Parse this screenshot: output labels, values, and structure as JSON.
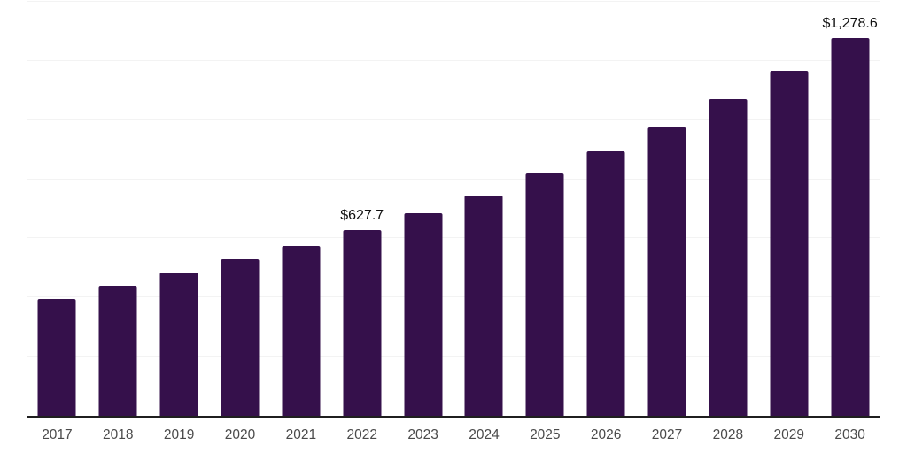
{
  "chart_data": {
    "type": "bar",
    "title": "",
    "xlabel": "",
    "ylabel": "",
    "categories": [
      "2017",
      "2018",
      "2019",
      "2020",
      "2021",
      "2022",
      "2023",
      "2024",
      "2025",
      "2026",
      "2027",
      "2028",
      "2029",
      "2030"
    ],
    "values": [
      395,
      440,
      486,
      530,
      575,
      627.7,
      684,
      746,
      820,
      893,
      976,
      1070,
      1167,
      1278.6
    ],
    "data_labels": [
      "",
      "",
      "",
      "",
      "",
      "$627.7",
      "",
      "",
      "",
      "",
      "",
      "",
      "",
      "$1,278.6"
    ],
    "ylim": [
      0,
      1400
    ],
    "gridline_step": 200,
    "grid": "horizontal-only",
    "legend": "none",
    "y_axis_labels_visible": false
  },
  "style": {
    "bar_color": "#35104b",
    "gridline_color": "#f3f3f3",
    "axis_line_color": "#1f1f1f",
    "tick_label_color": "#4a4a4a",
    "data_label_color": "#111111",
    "background_color": "#ffffff"
  }
}
